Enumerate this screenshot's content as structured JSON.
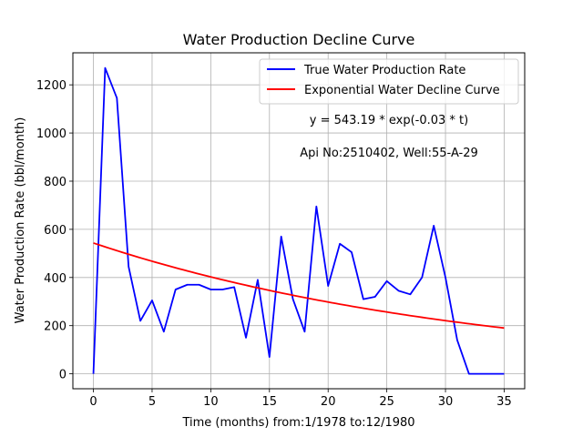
{
  "chart_data": {
    "type": "line",
    "title": "Water Production Decline Curve",
    "xlabel": "Time (months) from:1/1978 to:12/1980",
    "ylabel": "Water Production Rate (bbl/month)",
    "xlim": [
      -1.75,
      36.75
    ],
    "ylim": [
      -62,
      1333
    ],
    "xticks": [
      0,
      5,
      10,
      15,
      20,
      25,
      30,
      35
    ],
    "yticks": [
      0,
      200,
      400,
      600,
      800,
      1000,
      1200
    ],
    "grid": true,
    "legend_position": "top-right",
    "series": [
      {
        "name": "True Water Production Rate",
        "color": "#0000ff",
        "x": [
          0,
          1,
          2,
          3,
          4,
          5,
          6,
          7,
          8,
          9,
          10,
          11,
          12,
          13,
          14,
          15,
          16,
          17,
          18,
          19,
          20,
          21,
          22,
          23,
          24,
          25,
          26,
          27,
          28,
          29,
          30,
          31,
          32,
          33,
          34,
          35
        ],
        "y": [
          0,
          1270,
          1145,
          445,
          220,
          305,
          175,
          350,
          370,
          370,
          350,
          350,
          360,
          150,
          390,
          70,
          570,
          310,
          175,
          695,
          365,
          540,
          505,
          310,
          320,
          385,
          345,
          330,
          400,
          615,
          400,
          140,
          0,
          0,
          0,
          0
        ]
      },
      {
        "name": "Exponential Water Decline Curve",
        "color": "#ff0000",
        "function": {
          "a": 543.19,
          "b": -0.03
        },
        "x_range": [
          0,
          35
        ]
      }
    ],
    "annotations": [
      "y = 543.19 * exp(-0.03 * t)",
      "Api No:2510402, Well:55-A-29"
    ]
  }
}
